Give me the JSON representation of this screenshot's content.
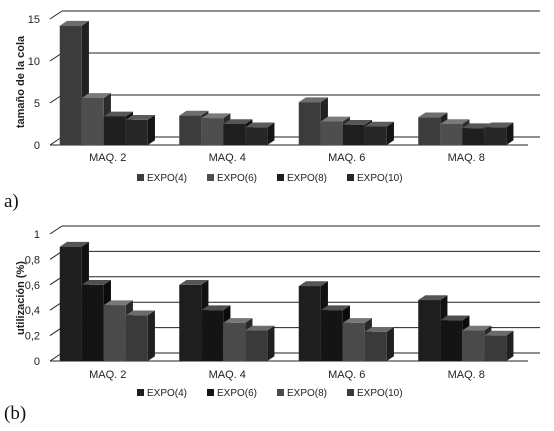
{
  "chart_data": [
    {
      "type": "bar",
      "panel_label": "a)",
      "categories": [
        "MAQ. 2",
        "MAQ. 4",
        "MAQ. 6",
        "MAQ. 8"
      ],
      "series": [
        {
          "name": "EXPO(4)",
          "values": [
            14.2,
            3.5,
            5.1,
            3.3
          ],
          "color": "#3c3c3c"
        },
        {
          "name": "EXPO(6)",
          "values": [
            5.6,
            3.2,
            2.8,
            2.5
          ],
          "color": "#4e4e4e"
        },
        {
          "name": "EXPO(8)",
          "values": [
            3.4,
            2.5,
            2.4,
            2.0
          ],
          "color": "#1e1e1e"
        },
        {
          "name": "EXPO(10)",
          "values": [
            3.0,
            2.1,
            2.2,
            2.1
          ],
          "color": "#262626"
        }
      ],
      "xlabel": "",
      "ylabel": "tamaño de la cola",
      "yticks": [
        "0",
        "5",
        "10",
        "15"
      ],
      "ylim": [
        0,
        15
      ],
      "grid": true,
      "legend_position": "bottom"
    },
    {
      "type": "bar",
      "panel_label": "(b)",
      "categories": [
        "MAQ. 2",
        "MAQ. 4",
        "MAQ. 6",
        "MAQ. 8"
      ],
      "series": [
        {
          "name": "EXPO(4)",
          "values": [
            0.9,
            0.6,
            0.59,
            0.48
          ],
          "color": "#1e1e1e"
        },
        {
          "name": "EXPO(6)",
          "values": [
            0.6,
            0.4,
            0.4,
            0.32
          ],
          "color": "#141414"
        },
        {
          "name": "EXPO(8)",
          "values": [
            0.44,
            0.3,
            0.3,
            0.24
          ],
          "color": "#4a4a4a"
        },
        {
          "name": "EXPO(10)",
          "values": [
            0.36,
            0.24,
            0.23,
            0.2
          ],
          "color": "#3a3a3a"
        }
      ],
      "xlabel": "",
      "ylabel": "utilización (%)",
      "yticks": [
        "0",
        "0,2",
        "0,4",
        "0,6",
        "0,8",
        "1"
      ],
      "ylim": [
        0,
        1
      ],
      "grid": true,
      "legend_position": "bottom"
    }
  ]
}
